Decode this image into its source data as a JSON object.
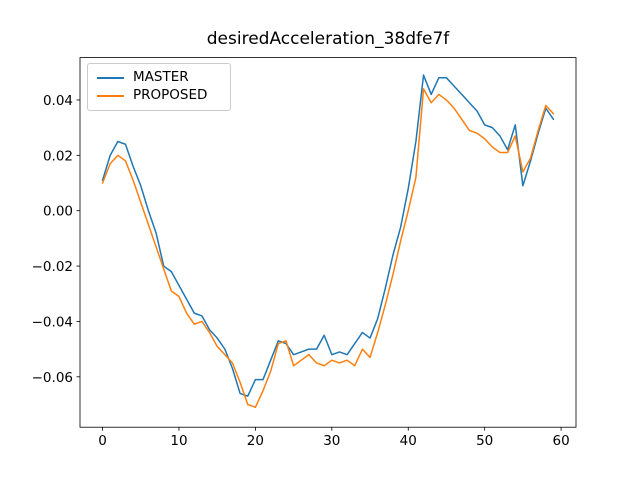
{
  "chart_data": {
    "type": "line",
    "title": "desiredAcceleration_38dfe7f",
    "xlabel": "",
    "ylabel": "",
    "grid": false,
    "legend_position": "upper left",
    "xlim": [
      -2.95,
      61.95
    ],
    "ylim": [
      -0.0782,
      0.0553
    ],
    "xticks": {
      "values": [
        0,
        10,
        20,
        30,
        40,
        50,
        60
      ],
      "labels": [
        "0",
        "10",
        "20",
        "30",
        "40",
        "50",
        "60"
      ]
    },
    "yticks": {
      "values": [
        0.04,
        0.02,
        0.0,
        -0.02,
        -0.04,
        -0.06
      ],
      "labels": [
        "0.04",
        "0.02",
        "0.00",
        "−0.02",
        "−0.04",
        "−0.06"
      ]
    },
    "x": [
      0,
      1,
      2,
      3,
      4,
      5,
      6,
      7,
      8,
      9,
      10,
      11,
      12,
      13,
      14,
      15,
      16,
      17,
      18,
      19,
      20,
      21,
      22,
      23,
      24,
      25,
      26,
      27,
      28,
      29,
      30,
      31,
      32,
      33,
      34,
      35,
      36,
      37,
      38,
      39,
      40,
      41,
      42,
      43,
      44,
      45,
      46,
      47,
      48,
      49,
      50,
      51,
      52,
      53,
      54,
      55,
      56,
      57,
      58,
      59
    ],
    "series": [
      {
        "name": "MASTER",
        "color": "#1f77b4",
        "values": [
          0.011,
          0.02,
          0.025,
          0.024,
          0.016,
          0.009,
          0.0,
          -0.008,
          -0.02,
          -0.022,
          -0.027,
          -0.032,
          -0.037,
          -0.038,
          -0.043,
          -0.046,
          -0.05,
          -0.057,
          -0.066,
          -0.067,
          -0.061,
          -0.061,
          -0.054,
          -0.047,
          -0.048,
          -0.052,
          -0.051,
          -0.05,
          -0.05,
          -0.045,
          -0.052,
          -0.051,
          -0.052,
          -0.048,
          -0.044,
          -0.046,
          -0.039,
          -0.028,
          -0.016,
          -0.006,
          0.008,
          0.025,
          0.049,
          0.042,
          0.048,
          0.048,
          0.045,
          0.042,
          0.039,
          0.036,
          0.031,
          0.03,
          0.027,
          0.022,
          0.031,
          0.009,
          0.018,
          0.028,
          0.037,
          0.033
        ]
      },
      {
        "name": "PROPOSED",
        "color": "#ff7f0e",
        "values": [
          0.01,
          0.017,
          0.02,
          0.018,
          0.011,
          0.003,
          -0.005,
          -0.013,
          -0.021,
          -0.029,
          -0.031,
          -0.037,
          -0.041,
          -0.04,
          -0.044,
          -0.049,
          -0.052,
          -0.055,
          -0.062,
          -0.07,
          -0.071,
          -0.065,
          -0.058,
          -0.048,
          -0.047,
          -0.056,
          -0.054,
          -0.052,
          -0.055,
          -0.056,
          -0.054,
          -0.055,
          -0.054,
          -0.056,
          -0.05,
          -0.053,
          -0.044,
          -0.034,
          -0.023,
          -0.011,
          0.0,
          0.012,
          0.044,
          0.039,
          0.042,
          0.04,
          0.037,
          0.033,
          0.029,
          0.028,
          0.026,
          0.023,
          0.021,
          0.021,
          0.027,
          0.014,
          0.019,
          0.029,
          0.038,
          0.035
        ]
      }
    ]
  }
}
